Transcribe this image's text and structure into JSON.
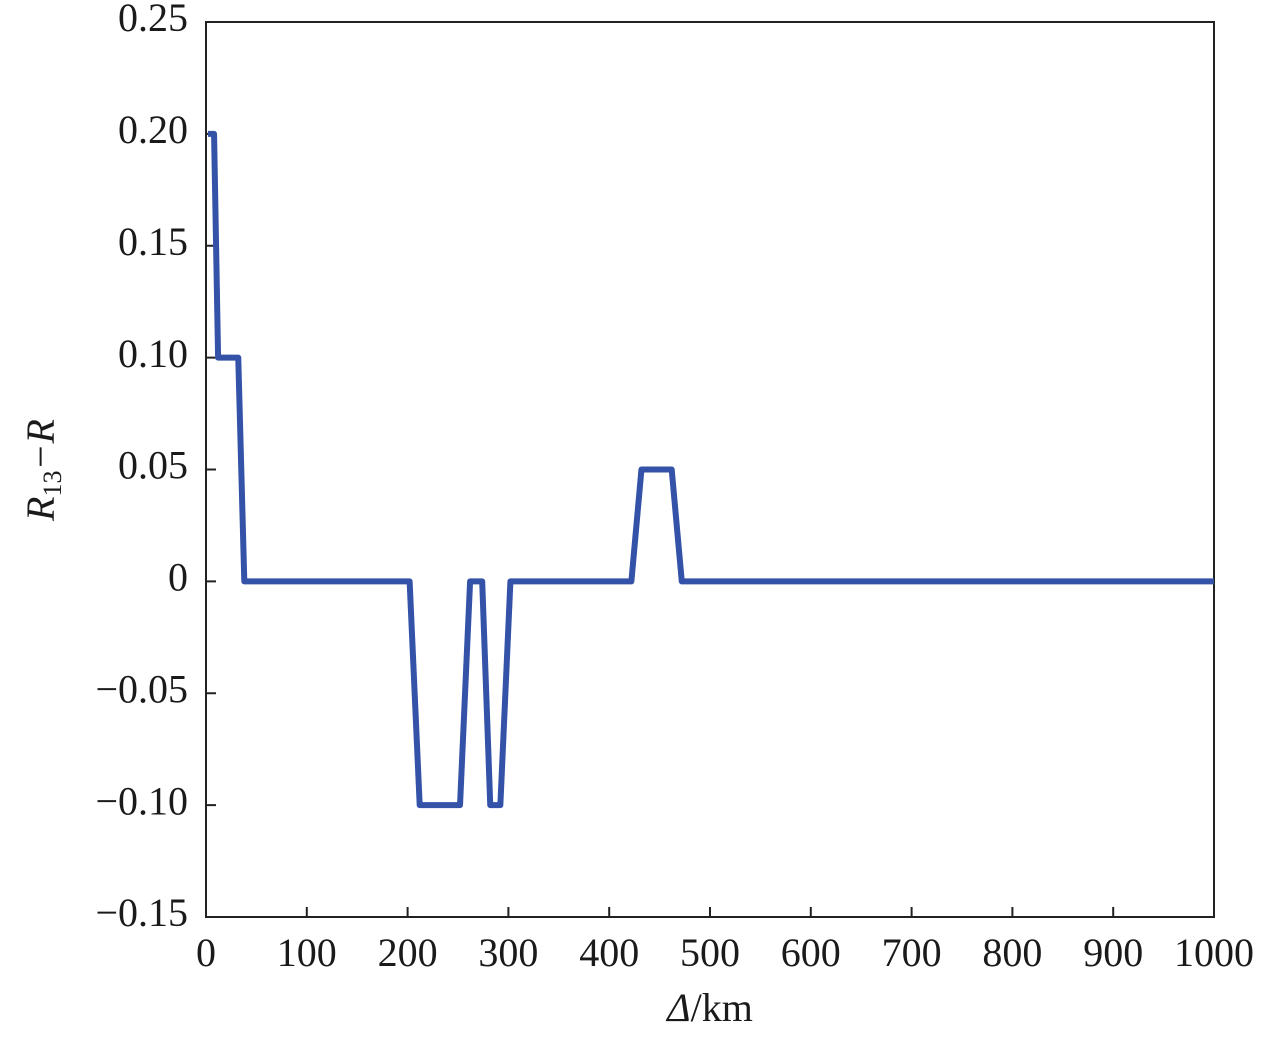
{
  "chart_data": {
    "type": "line",
    "x_label": [
      "Δ",
      "/km"
    ],
    "y_label": [
      "R",
      "13",
      "−R"
    ],
    "series": [
      {
        "color": "#3453a8",
        "x": [
          2,
          8,
          12,
          32,
          38,
          202,
          212,
          252,
          262,
          274,
          282,
          292,
          302,
          422,
          432,
          462,
          472,
          1000
        ],
        "values": [
          0.2,
          0.2,
          0.1,
          0.1,
          0,
          0,
          -0.1,
          -0.1,
          0,
          0,
          -0.1,
          -0.1,
          0,
          0,
          0.05,
          0.05,
          0,
          0
        ]
      }
    ],
    "xlim": [
      0,
      1000
    ],
    "xticks": [
      0,
      100,
      200,
      300,
      400,
      500,
      600,
      700,
      800,
      900,
      1000
    ],
    "ylim": [
      -0.15,
      0.25
    ],
    "yticks": [
      {
        "value": -0.15,
        "label": "−0.15"
      },
      {
        "value": -0.1,
        "label": "−0.10"
      },
      {
        "value": -0.05,
        "label": "−0.05"
      },
      0,
      0.05,
      {
        "value": 0.1,
        "label": "0.10"
      },
      0.15,
      {
        "value": 0.2,
        "label": "0.20"
      },
      0.25
    ]
  }
}
